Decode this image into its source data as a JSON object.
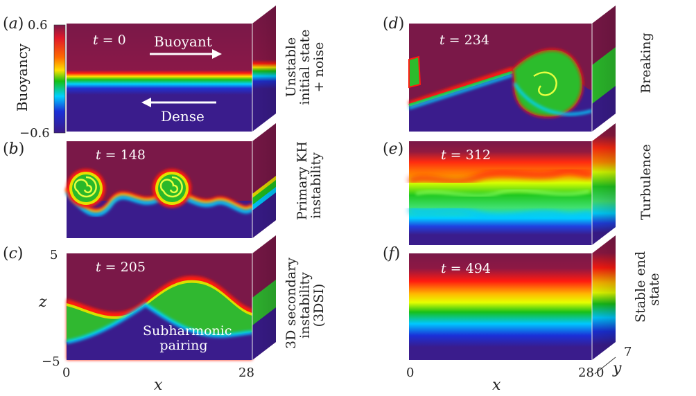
{
  "colorbar": {
    "label": "Buoyancy",
    "max_label": "0.6",
    "min_label": "−0.6",
    "colors": [
      "#7a1a4a",
      "#ff0000",
      "#ffe600",
      "#12c012",
      "#00d4ff",
      "#1a2dd0",
      "#3a1a8a"
    ]
  },
  "panels": [
    {
      "id": "a",
      "label": "a",
      "time_prefix": "t",
      "time_value": "0",
      "side_label": "Unstable\ninitial state\n+ noise"
    },
    {
      "id": "b",
      "label": "b",
      "time_prefix": "t",
      "time_value": "148",
      "side_label": "Primary KH\ninstability"
    },
    {
      "id": "c",
      "label": "c",
      "time_prefix": "t",
      "time_value": "205",
      "side_label": "3D secondary\ninstability\n(3DSI)"
    },
    {
      "id": "d",
      "label": "d",
      "time_prefix": "t",
      "time_value": "234",
      "side_label": "Breaking"
    },
    {
      "id": "e",
      "label": "e",
      "time_prefix": "t",
      "time_value": "312",
      "side_label": "Turbulence"
    },
    {
      "id": "f",
      "label": "f",
      "time_prefix": "t",
      "time_value": "494",
      "side_label": "Stable end\nstate"
    }
  ],
  "annotations": {
    "buoyant": "Buoyant",
    "dense": "Dense",
    "subharmonic": "Subharmonic\npairing"
  },
  "axes": {
    "z_label": "z",
    "z_top": "5",
    "z_bottom": "−5",
    "x_label_left": "x",
    "x_left_min": "0",
    "x_left_max": "28",
    "x_label_right": "x",
    "x_right_min": "0",
    "x_right_max": "28",
    "y_label": "y",
    "y_min": "0",
    "y_max": "7"
  }
}
